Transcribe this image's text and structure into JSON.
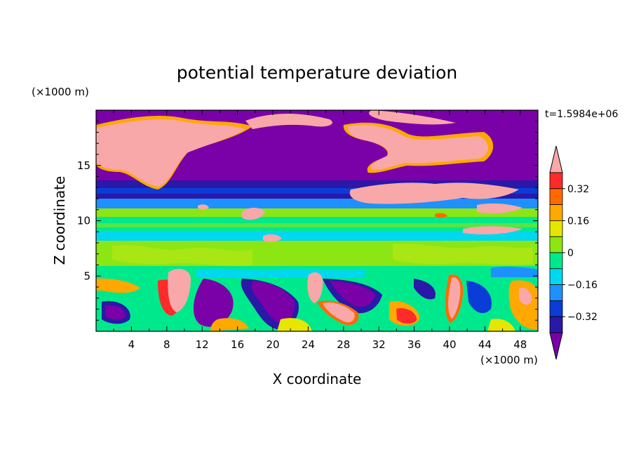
{
  "chart_data": {
    "type": "heatmap",
    "title": "potential temperature deviation",
    "xlabel": "X coordinate",
    "ylabel": "Z coordinate",
    "x_unit": "(×1000 m)",
    "z_unit": "(×1000 m)",
    "time_label": "t=1.5984e+06",
    "x_range": [
      0,
      50
    ],
    "z_range": [
      0,
      20
    ],
    "x_ticks": [
      "4",
      "8",
      "12",
      "16",
      "20",
      "24",
      "28",
      "32",
      "36",
      "40",
      "44",
      "48"
    ],
    "z_ticks": [
      "5",
      "10",
      "15"
    ],
    "colorbar": {
      "levels": [
        -0.48,
        -0.4,
        -0.32,
        -0.24,
        -0.16,
        -0.08,
        0,
        0.08,
        0.16,
        0.24,
        0.32,
        0.4,
        0.48
      ],
      "tick_labels": [
        "0.32",
        "0.16",
        "0",
        "−0.16",
        "−0.32"
      ],
      "colors": [
        "#7a00a8",
        "#2a18a8",
        "#0a3cd8",
        "#1e90ff",
        "#00d8f0",
        "#00e88c",
        "#8ce614",
        "#e6e600",
        "#ffa800",
        "#ff6a00",
        "#ff2a2a",
        "#f8a8a8"
      ]
    }
  }
}
